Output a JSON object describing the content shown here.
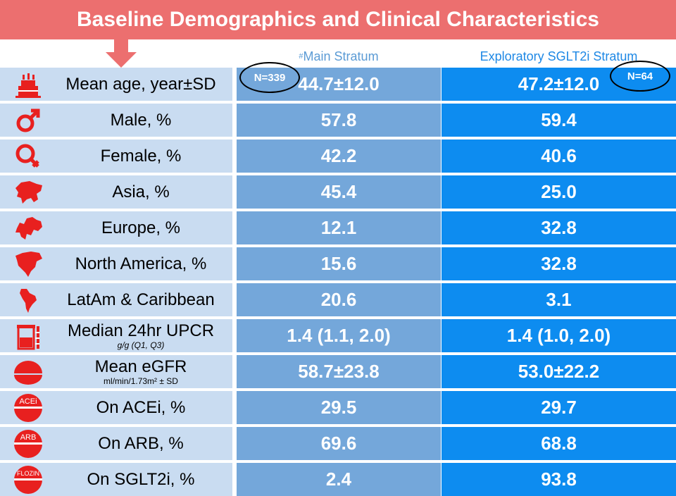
{
  "title": "Baseline Demographics and Clinical Characteristics",
  "columns": {
    "main_mark": "#",
    "main": "Main Stratum",
    "exploratory": "Exploratory SGLT2i Stratum",
    "main_n": "N=339",
    "exploratory_n": "N=64"
  },
  "rows": [
    {
      "icon": "birthday-cake-icon",
      "label": "Mean age, year±SD",
      "sub": "",
      "main": "44.7±12.0",
      "expl": "47.2±12.0"
    },
    {
      "icon": "male-symbol-icon",
      "label": "Male, %",
      "sub": "",
      "main": "57.8",
      "expl": "59.4"
    },
    {
      "icon": "female-symbol-icon",
      "label": "Female, %",
      "sub": "",
      "main": "42.2",
      "expl": "40.6"
    },
    {
      "icon": "asia-map-icon",
      "label": "Asia, %",
      "sub": "",
      "main": "45.4",
      "expl": "25.0"
    },
    {
      "icon": "europe-map-icon",
      "label": "Europe, %",
      "sub": "",
      "main": "12.1",
      "expl": "32.8"
    },
    {
      "icon": "north-america-map-icon",
      "label": "North America, %",
      "sub": "",
      "main": "15.6",
      "expl": "32.8"
    },
    {
      "icon": "latin-america-map-icon",
      "label": "LatAm & Caribbean",
      "sub": "",
      "main": "20.6",
      "expl": "3.1"
    },
    {
      "icon": "urine-container-icon",
      "label": "Median 24hr UPCR",
      "sub": "g/g (Q1, Q3)",
      "main": "1.4 (1.1, 2.0)",
      "expl": "1.4 (1.0, 2.0)"
    },
    {
      "icon": "kidney-icon",
      "label": "Mean eGFR",
      "sub": "ml/min/1.73m² ± SD",
      "main": "58.7±23.8",
      "expl": "53.0±22.2"
    },
    {
      "icon": "acei-pill-icon",
      "icon_text": "ACEi",
      "label": "On ACEi, %",
      "sub": "",
      "main": "29.5",
      "expl": "29.7"
    },
    {
      "icon": "arb-pill-icon",
      "icon_text": "ARB",
      "label": "On ARB, %",
      "sub": "",
      "main": "69.6",
      "expl": "68.8"
    },
    {
      "icon": "flozin-pill-icon",
      "icon_text": "FLOZIN",
      "label": "On SGLT2i, %",
      "sub": "",
      "main": "2.4",
      "expl": "93.8"
    }
  ],
  "colors": {
    "banner": "#ec6f6f",
    "icon_red": "#e8201f",
    "label_bg": "#c9dcf1",
    "main_bg": "#74a7da",
    "expl_bg": "#0d8cf0"
  }
}
